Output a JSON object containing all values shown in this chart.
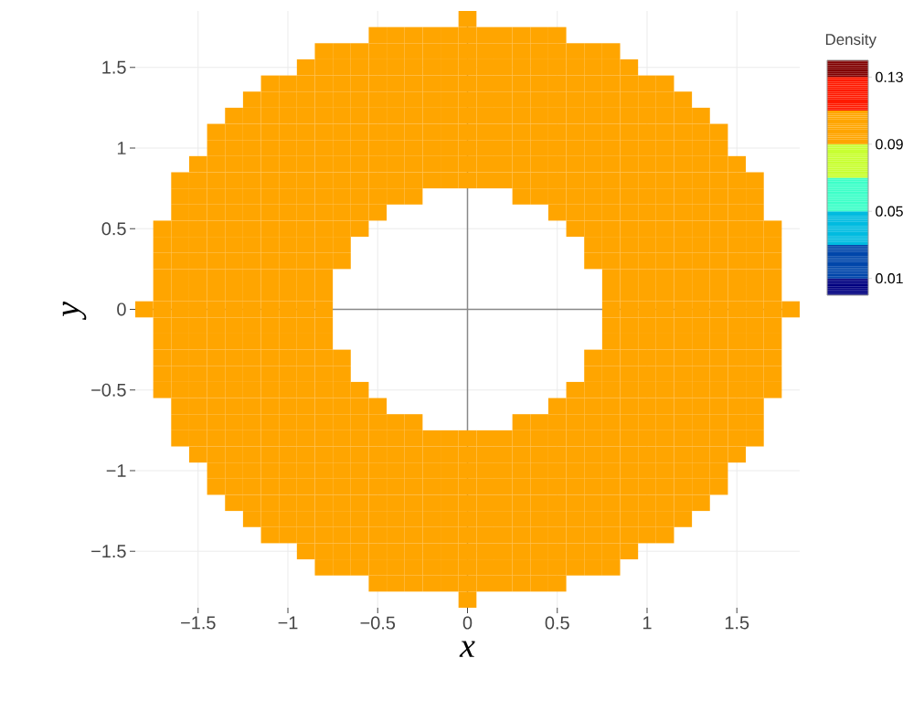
{
  "chart_data": {
    "type": "heatmap",
    "xlabel": "x",
    "ylabel": "y",
    "clabel": "Density",
    "xlim": [
      -1.85,
      1.85
    ],
    "ylim": [
      -1.85,
      1.85
    ],
    "xticks": [
      {
        "value": -1.5,
        "label": "−1.5"
      },
      {
        "value": -1,
        "label": "−1"
      },
      {
        "value": -0.5,
        "label": "−0.5"
      },
      {
        "value": 0,
        "label": "0"
      },
      {
        "value": 0.5,
        "label": "0.5"
      },
      {
        "value": 1,
        "label": "1"
      },
      {
        "value": 1.5,
        "label": "1.5"
      }
    ],
    "yticks": [
      {
        "value": -1.5,
        "label": "−1.5"
      },
      {
        "value": -1,
        "label": "−1"
      },
      {
        "value": -0.5,
        "label": "−0.5"
      },
      {
        "value": 0,
        "label": "0"
      },
      {
        "value": 0.5,
        "label": "0.5"
      },
      {
        "value": 1,
        "label": "1"
      },
      {
        "value": 1.5,
        "label": "1.5"
      }
    ],
    "grid": true,
    "clim": [
      0,
      0.14
    ],
    "cticks": [
      {
        "value": 0.01,
        "label": "0.01"
      },
      {
        "value": 0.05,
        "label": "0.05"
      },
      {
        "value": 0.09,
        "label": "0.09"
      },
      {
        "value": 0.13,
        "label": "0.13"
      }
    ],
    "x": [
      -1.8,
      -1.7,
      -1.6,
      -1.5,
      -1.4,
      -1.3,
      -1.2,
      -1.1,
      -1,
      -0.9,
      -0.8,
      -0.7,
      -0.6,
      -0.5,
      -0.4,
      -0.3,
      -0.2,
      -0.1,
      0,
      0.1,
      0.2,
      0.3,
      0.4,
      0.5,
      0.6,
      0.7,
      0.8,
      0.9,
      1,
      1.1,
      1.2,
      1.3,
      1.4,
      1.5,
      1.6,
      1.7,
      1.8
    ],
    "y": [
      1.8,
      1.7,
      1.6,
      1.5,
      1.4,
      1.3,
      1.2,
      1.1,
      1,
      0.9,
      0.8,
      0.7,
      0.6,
      0.5,
      0.4,
      0.3,
      0.2,
      0.1,
      0,
      -0.1,
      -0.2,
      -0.3,
      -0.4,
      -0.5,
      -0.6,
      -0.7,
      -0.8,
      -0.9,
      -1,
      -1.1,
      -1.2,
      -1.3,
      -1.4,
      -1.5,
      -1.6,
      -1.7,
      -1.8
    ],
    "cells": [
      [
        null,
        null,
        null,
        null,
        null,
        null,
        null,
        null,
        null,
        null,
        null,
        null,
        null,
        null,
        null,
        null,
        null,
        null,
        0.1,
        null,
        null,
        null,
        null,
        null,
        null,
        null,
        null,
        null,
        null,
        null,
        null,
        null,
        null,
        null,
        null,
        null,
        null
      ],
      [
        null,
        null,
        null,
        null,
        null,
        null,
        null,
        null,
        null,
        null,
        null,
        null,
        null,
        0.1,
        0.1,
        0.1,
        0.1,
        0.1,
        0.1,
        0.1,
        0.1,
        0.1,
        0.1,
        0.1,
        null,
        null,
        null,
        null,
        null,
        null,
        null,
        null,
        null,
        null,
        null,
        null,
        null
      ],
      [
        null,
        null,
        null,
        null,
        null,
        null,
        null,
        null,
        null,
        null,
        0.1,
        0.1,
        0.1,
        0.1,
        0.1,
        0.1,
        0.1,
        0.1,
        0.1,
        0.1,
        0.1,
        0.1,
        0.1,
        0.1,
        0.1,
        0.1,
        0.1,
        null,
        null,
        null,
        null,
        null,
        null,
        null,
        null,
        null,
        null
      ],
      [
        null,
        null,
        null,
        null,
        null,
        null,
        null,
        null,
        null,
        0.1,
        0.1,
        0.1,
        0.1,
        0.1,
        0.1,
        0.1,
        0.1,
        0.1,
        0.1,
        0.1,
        0.1,
        0.1,
        0.1,
        0.1,
        0.1,
        0.1,
        0.1,
        0.1,
        null,
        null,
        null,
        null,
        null,
        null,
        null,
        null,
        null
      ],
      [
        null,
        null,
        null,
        null,
        null,
        null,
        null,
        0.1,
        0.1,
        0.1,
        0.1,
        0.1,
        0.1,
        0.1,
        0.1,
        0.1,
        0.1,
        0.1,
        0.1,
        0.1,
        0.1,
        0.1,
        0.1,
        0.1,
        0.1,
        0.1,
        0.1,
        0.1,
        0.1,
        0.1,
        null,
        null,
        null,
        null,
        null,
        null,
        null
      ],
      [
        null,
        null,
        null,
        null,
        null,
        null,
        0.1,
        0.1,
        0.1,
        0.1,
        0.1,
        0.1,
        0.1,
        0.1,
        0.1,
        0.1,
        0.1,
        0.1,
        0.1,
        0.1,
        0.1,
        0.1,
        0.1,
        0.1,
        0.1,
        0.1,
        0.1,
        0.1,
        0.1,
        0.1,
        0.1,
        null,
        null,
        null,
        null,
        null,
        null
      ],
      [
        null,
        null,
        null,
        null,
        null,
        0.1,
        0.1,
        0.1,
        0.1,
        0.1,
        0.1,
        0.1,
        0.1,
        0.1,
        0.1,
        0.1,
        0.1,
        0.1,
        0.1,
        0.1,
        0.1,
        0.1,
        0.1,
        0.1,
        0.1,
        0.1,
        0.1,
        0.1,
        0.1,
        0.1,
        0.1,
        0.1,
        null,
        null,
        null,
        null,
        null
      ],
      [
        null,
        null,
        null,
        null,
        0.1,
        0.1,
        0.1,
        0.1,
        0.1,
        0.1,
        0.1,
        0.1,
        0.1,
        0.1,
        0.1,
        0.1,
        0.1,
        0.1,
        0.1,
        0.1,
        0.1,
        0.1,
        0.1,
        0.1,
        0.1,
        0.1,
        0.1,
        0.1,
        0.1,
        0.1,
        0.1,
        0.1,
        0.1,
        null,
        null,
        null,
        null
      ],
      [
        null,
        null,
        null,
        null,
        0.1,
        0.1,
        0.1,
        0.1,
        0.1,
        0.1,
        0.1,
        0.1,
        0.1,
        0.1,
        0.1,
        0.1,
        0.1,
        0.1,
        0.1,
        0.1,
        0.1,
        0.1,
        0.1,
        0.1,
        0.1,
        0.1,
        0.1,
        0.1,
        0.1,
        0.1,
        0.1,
        0.1,
        0.1,
        null,
        null,
        null,
        null
      ],
      [
        null,
        null,
        null,
        0.1,
        0.1,
        0.1,
        0.1,
        0.1,
        0.1,
        0.1,
        0.1,
        0.1,
        0.1,
        0.1,
        0.1,
        0.1,
        0.1,
        0.1,
        0.1,
        0.1,
        0.1,
        0.1,
        0.1,
        0.1,
        0.1,
        0.1,
        0.1,
        0.1,
        0.1,
        0.1,
        0.1,
        0.1,
        0.1,
        0.1,
        null,
        null,
        null
      ],
      [
        null,
        null,
        0.1,
        0.1,
        0.1,
        0.1,
        0.1,
        0.1,
        0.1,
        0.1,
        0.1,
        0.1,
        0.1,
        0.1,
        0.1,
        0.1,
        0.1,
        0.1,
        0.1,
        0.1,
        0.1,
        0.1,
        0.1,
        0.1,
        0.1,
        0.1,
        0.1,
        0.1,
        0.1,
        0.1,
        0.1,
        0.1,
        0.1,
        0.1,
        0.1,
        null,
        null
      ],
      [
        null,
        null,
        0.1,
        0.1,
        0.1,
        0.1,
        0.1,
        0.1,
        0.1,
        0.1,
        0.1,
        0.1,
        0.1,
        0.1,
        0.1,
        0.1,
        null,
        null,
        null,
        null,
        null,
        0.1,
        0.1,
        0.1,
        0.1,
        0.1,
        0.1,
        0.1,
        0.1,
        0.1,
        0.1,
        0.1,
        0.1,
        0.1,
        0.1,
        null,
        null
      ],
      [
        null,
        null,
        0.1,
        0.1,
        0.1,
        0.1,
        0.1,
        0.1,
        0.1,
        0.1,
        0.1,
        0.1,
        0.1,
        0.1,
        null,
        null,
        null,
        null,
        null,
        null,
        null,
        null,
        null,
        0.1,
        0.1,
        0.1,
        0.1,
        0.1,
        0.1,
        0.1,
        0.1,
        0.1,
        0.1,
        0.1,
        0.1,
        null,
        null
      ],
      [
        null,
        0.1,
        0.1,
        0.1,
        0.1,
        0.1,
        0.1,
        0.1,
        0.1,
        0.1,
        0.1,
        0.1,
        0.1,
        null,
        null,
        null,
        null,
        null,
        null,
        null,
        null,
        null,
        null,
        null,
        0.1,
        0.1,
        0.1,
        0.1,
        0.1,
        0.1,
        0.1,
        0.1,
        0.1,
        0.1,
        0.1,
        0.1,
        null
      ],
      [
        null,
        0.1,
        0.1,
        0.1,
        0.1,
        0.1,
        0.1,
        0.1,
        0.1,
        0.1,
        0.1,
        0.1,
        null,
        null,
        null,
        null,
        null,
        null,
        null,
        null,
        null,
        null,
        null,
        null,
        null,
        0.1,
        0.1,
        0.1,
        0.1,
        0.1,
        0.1,
        0.1,
        0.1,
        0.1,
        0.1,
        0.1,
        null
      ],
      [
        null,
        0.1,
        0.1,
        0.1,
        0.1,
        0.1,
        0.1,
        0.1,
        0.1,
        0.1,
        0.1,
        0.1,
        null,
        null,
        null,
        null,
        null,
        null,
        null,
        null,
        null,
        null,
        null,
        null,
        null,
        0.1,
        0.1,
        0.1,
        0.1,
        0.1,
        0.1,
        0.1,
        0.1,
        0.1,
        0.1,
        0.1,
        null
      ],
      [
        null,
        0.1,
        0.1,
        0.1,
        0.1,
        0.1,
        0.1,
        0.1,
        0.1,
        0.1,
        0.1,
        null,
        null,
        null,
        null,
        null,
        null,
        null,
        null,
        null,
        null,
        null,
        null,
        null,
        null,
        null,
        0.1,
        0.1,
        0.1,
        0.1,
        0.1,
        0.1,
        0.1,
        0.1,
        0.1,
        0.1,
        null
      ],
      [
        null,
        0.1,
        0.1,
        0.1,
        0.1,
        0.1,
        0.1,
        0.1,
        0.1,
        0.1,
        0.1,
        null,
        null,
        null,
        null,
        null,
        null,
        null,
        null,
        null,
        null,
        null,
        null,
        null,
        null,
        null,
        0.1,
        0.1,
        0.1,
        0.1,
        0.1,
        0.1,
        0.1,
        0.1,
        0.1,
        0.1,
        null
      ],
      [
        0.1,
        0.1,
        0.1,
        0.1,
        0.1,
        0.1,
        0.1,
        0.1,
        0.1,
        0.1,
        0.1,
        null,
        null,
        null,
        null,
        null,
        null,
        null,
        null,
        null,
        null,
        null,
        null,
        null,
        null,
        null,
        0.1,
        0.1,
        0.1,
        0.1,
        0.1,
        0.1,
        0.1,
        0.1,
        0.1,
        0.1,
        0.1
      ],
      [
        null,
        0.1,
        0.1,
        0.1,
        0.1,
        0.1,
        0.1,
        0.1,
        0.1,
        0.1,
        0.1,
        null,
        null,
        null,
        null,
        null,
        null,
        null,
        null,
        null,
        null,
        null,
        null,
        null,
        null,
        null,
        0.1,
        0.1,
        0.1,
        0.1,
        0.1,
        0.1,
        0.1,
        0.1,
        0.1,
        0.1,
        null
      ],
      [
        null,
        0.1,
        0.1,
        0.1,
        0.1,
        0.1,
        0.1,
        0.1,
        0.1,
        0.1,
        0.1,
        null,
        null,
        null,
        null,
        null,
        null,
        null,
        null,
        null,
        null,
        null,
        null,
        null,
        null,
        null,
        0.1,
        0.1,
        0.1,
        0.1,
        0.1,
        0.1,
        0.1,
        0.1,
        0.1,
        0.1,
        null
      ],
      [
        null,
        0.1,
        0.1,
        0.1,
        0.1,
        0.1,
        0.1,
        0.1,
        0.1,
        0.1,
        0.1,
        0.1,
        null,
        null,
        null,
        null,
        null,
        null,
        null,
        null,
        null,
        null,
        null,
        null,
        null,
        0.1,
        0.1,
        0.1,
        0.1,
        0.1,
        0.1,
        0.1,
        0.1,
        0.1,
        0.1,
        0.1,
        null
      ],
      [
        null,
        0.1,
        0.1,
        0.1,
        0.1,
        0.1,
        0.1,
        0.1,
        0.1,
        0.1,
        0.1,
        0.1,
        null,
        null,
        null,
        null,
        null,
        null,
        null,
        null,
        null,
        null,
        null,
        null,
        null,
        0.1,
        0.1,
        0.1,
        0.1,
        0.1,
        0.1,
        0.1,
        0.1,
        0.1,
        0.1,
        0.1,
        null
      ],
      [
        null,
        0.1,
        0.1,
        0.1,
        0.1,
        0.1,
        0.1,
        0.1,
        0.1,
        0.1,
        0.1,
        0.1,
        0.1,
        null,
        null,
        null,
        null,
        null,
        null,
        null,
        null,
        null,
        null,
        null,
        0.1,
        0.1,
        0.1,
        0.1,
        0.1,
        0.1,
        0.1,
        0.1,
        0.1,
        0.1,
        0.1,
        0.1,
        null
      ],
      [
        null,
        null,
        0.1,
        0.1,
        0.1,
        0.1,
        0.1,
        0.1,
        0.1,
        0.1,
        0.1,
        0.1,
        0.1,
        0.1,
        null,
        null,
        null,
        null,
        null,
        null,
        null,
        null,
        null,
        0.1,
        0.1,
        0.1,
        0.1,
        0.1,
        0.1,
        0.1,
        0.1,
        0.1,
        0.1,
        0.1,
        0.1,
        null,
        null
      ],
      [
        null,
        null,
        0.1,
        0.1,
        0.1,
        0.1,
        0.1,
        0.1,
        0.1,
        0.1,
        0.1,
        0.1,
        0.1,
        0.1,
        0.1,
        0.1,
        null,
        null,
        null,
        null,
        null,
        0.1,
        0.1,
        0.1,
        0.1,
        0.1,
        0.1,
        0.1,
        0.1,
        0.1,
        0.1,
        0.1,
        0.1,
        0.1,
        0.1,
        null,
        null
      ],
      [
        null,
        null,
        0.1,
        0.1,
        0.1,
        0.1,
        0.1,
        0.1,
        0.1,
        0.1,
        0.1,
        0.1,
        0.1,
        0.1,
        0.1,
        0.1,
        0.1,
        0.1,
        0.1,
        0.1,
        0.1,
        0.1,
        0.1,
        0.1,
        0.1,
        0.1,
        0.1,
        0.1,
        0.1,
        0.1,
        0.1,
        0.1,
        0.1,
        0.1,
        0.1,
        null,
        null
      ],
      [
        null,
        null,
        null,
        0.1,
        0.1,
        0.1,
        0.1,
        0.1,
        0.1,
        0.1,
        0.1,
        0.1,
        0.1,
        0.1,
        0.1,
        0.1,
        0.1,
        0.1,
        0.1,
        0.1,
        0.1,
        0.1,
        0.1,
        0.1,
        0.1,
        0.1,
        0.1,
        0.1,
        0.1,
        0.1,
        0.1,
        0.1,
        0.1,
        0.1,
        null,
        null,
        null
      ],
      [
        null,
        null,
        null,
        null,
        0.1,
        0.1,
        0.1,
        0.1,
        0.1,
        0.1,
        0.1,
        0.1,
        0.1,
        0.1,
        0.1,
        0.1,
        0.1,
        0.1,
        0.1,
        0.1,
        0.1,
        0.1,
        0.1,
        0.1,
        0.1,
        0.1,
        0.1,
        0.1,
        0.1,
        0.1,
        0.1,
        0.1,
        0.1,
        null,
        null,
        null,
        null
      ],
      [
        null,
        null,
        null,
        null,
        0.1,
        0.1,
        0.1,
        0.1,
        0.1,
        0.1,
        0.1,
        0.1,
        0.1,
        0.1,
        0.1,
        0.1,
        0.1,
        0.1,
        0.1,
        0.1,
        0.1,
        0.1,
        0.1,
        0.1,
        0.1,
        0.1,
        0.1,
        0.1,
        0.1,
        0.1,
        0.1,
        0.1,
        0.1,
        null,
        null,
        null,
        null
      ],
      [
        null,
        null,
        null,
        null,
        null,
        0.1,
        0.1,
        0.1,
        0.1,
        0.1,
        0.1,
        0.1,
        0.1,
        0.1,
        0.1,
        0.1,
        0.1,
        0.1,
        0.1,
        0.1,
        0.1,
        0.1,
        0.1,
        0.1,
        0.1,
        0.1,
        0.1,
        0.1,
        0.1,
        0.1,
        0.1,
        0.1,
        null,
        null,
        null,
        null,
        null
      ],
      [
        null,
        null,
        null,
        null,
        null,
        null,
        0.1,
        0.1,
        0.1,
        0.1,
        0.1,
        0.1,
        0.1,
        0.1,
        0.1,
        0.1,
        0.1,
        0.1,
        0.1,
        0.1,
        0.1,
        0.1,
        0.1,
        0.1,
        0.1,
        0.1,
        0.1,
        0.1,
        0.1,
        0.1,
        0.1,
        null,
        null,
        null,
        null,
        null,
        null
      ],
      [
        null,
        null,
        null,
        null,
        null,
        null,
        null,
        0.1,
        0.1,
        0.1,
        0.1,
        0.1,
        0.1,
        0.1,
        0.1,
        0.1,
        0.1,
        0.1,
        0.1,
        0.1,
        0.1,
        0.1,
        0.1,
        0.1,
        0.1,
        0.1,
        0.1,
        0.1,
        0.1,
        0.1,
        null,
        null,
        null,
        null,
        null,
        null,
        null
      ],
      [
        null,
        null,
        null,
        null,
        null,
        null,
        null,
        null,
        null,
        0.1,
        0.1,
        0.1,
        0.1,
        0.1,
        0.1,
        0.1,
        0.1,
        0.1,
        0.1,
        0.1,
        0.1,
        0.1,
        0.1,
        0.1,
        0.1,
        0.1,
        0.1,
        0.1,
        null,
        null,
        null,
        null,
        null,
        null,
        null,
        null,
        null
      ],
      [
        null,
        null,
        null,
        null,
        null,
        null,
        null,
        null,
        null,
        null,
        0.1,
        0.1,
        0.1,
        0.1,
        0.1,
        0.1,
        0.1,
        0.1,
        0.1,
        0.1,
        0.1,
        0.1,
        0.1,
        0.1,
        0.1,
        0.1,
        0.1,
        null,
        null,
        null,
        null,
        null,
        null,
        null,
        null,
        null,
        null
      ],
      [
        null,
        null,
        null,
        null,
        null,
        null,
        null,
        null,
        null,
        null,
        null,
        null,
        null,
        0.1,
        0.1,
        0.1,
        0.1,
        0.1,
        0.1,
        0.1,
        0.1,
        0.1,
        0.1,
        0.1,
        null,
        null,
        null,
        null,
        null,
        null,
        null,
        null,
        null,
        null,
        null,
        null,
        null
      ],
      [
        null,
        null,
        null,
        null,
        null,
        null,
        null,
        null,
        null,
        null,
        null,
        null,
        null,
        null,
        null,
        null,
        null,
        null,
        0.1,
        null,
        null,
        null,
        null,
        null,
        null,
        null,
        null,
        null,
        null,
        null,
        null,
        null,
        null,
        null,
        null,
        null,
        null
      ]
    ]
  }
}
